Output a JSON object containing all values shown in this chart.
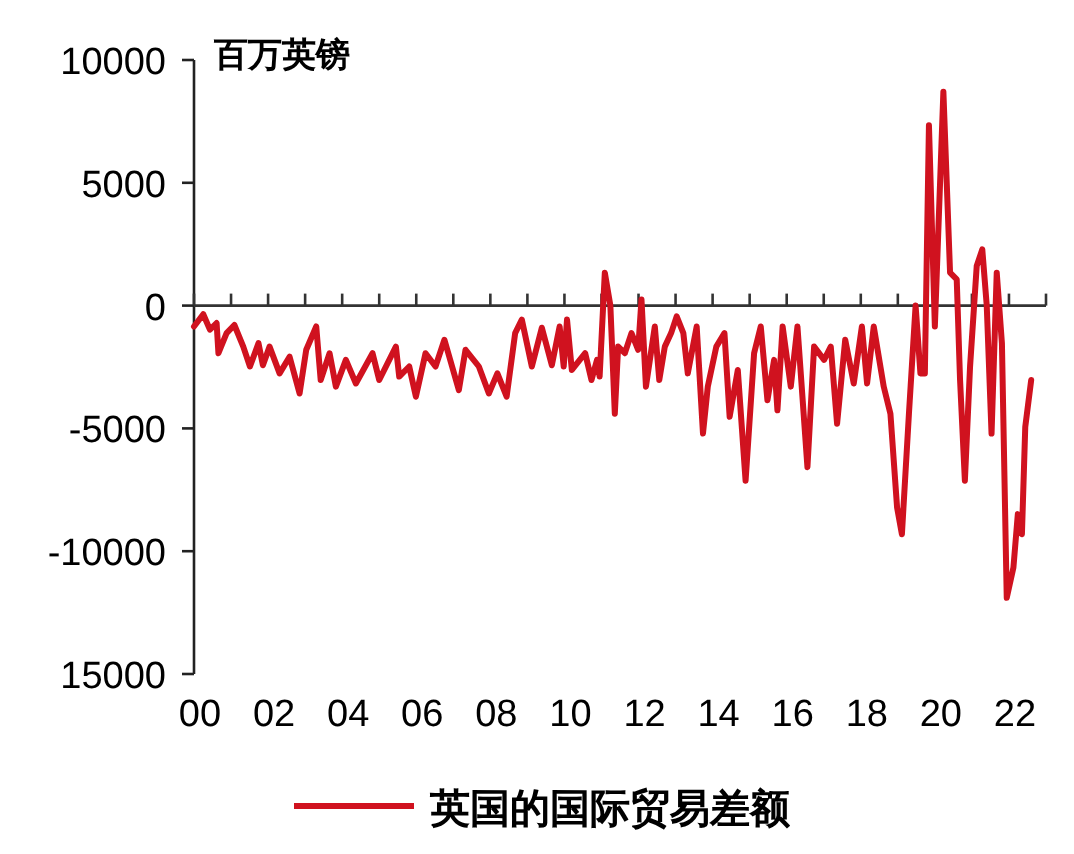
{
  "chart_data": {
    "type": "line",
    "ylabel": "百万英镑",
    "legend": "bottom",
    "x": [
      2000.0,
      2000.25,
      2000.43,
      2000.61,
      2000.66,
      2000.88,
      2001.09,
      2001.33,
      2001.51,
      2001.74,
      2001.86,
      2002.04,
      2002.31,
      2002.58,
      2002.85,
      2003.03,
      2003.3,
      2003.42,
      2003.66,
      2003.83,
      2004.1,
      2004.37,
      2004.82,
      2005.0,
      2005.45,
      2005.54,
      2005.81,
      2005.99,
      2006.25,
      2006.52,
      2006.76,
      2007.15,
      2007.33,
      2007.69,
      2007.96,
      2008.19,
      2008.44,
      2008.67,
      2008.85,
      2009.12,
      2009.39,
      2009.66,
      2009.87,
      2009.98,
      2010.07,
      2010.2,
      2010.56,
      2010.73,
      2010.88,
      2010.95,
      2011.09,
      2011.24,
      2011.36,
      2011.45,
      2011.63,
      2011.81,
      2011.99,
      2012.08,
      2012.2,
      2012.44,
      2012.56,
      2012.71,
      2012.88,
      2013.03,
      2013.21,
      2013.33,
      2013.57,
      2013.74,
      2013.87,
      2014.1,
      2014.32,
      2014.46,
      2014.68,
      2014.89,
      2015.12,
      2015.3,
      2015.48,
      2015.66,
      2015.75,
      2015.89,
      2016.11,
      2016.29,
      2016.56,
      2016.74,
      2017.01,
      2017.19,
      2017.36,
      2017.58,
      2017.81,
      2018.03,
      2018.17,
      2018.35,
      2018.62,
      2018.8,
      2018.98,
      2019.11,
      2019.3,
      2019.48,
      2019.61,
      2019.73,
      2019.84,
      2020.0,
      2020.23,
      2020.41,
      2020.59,
      2020.68,
      2020.81,
      2020.95,
      2021.13,
      2021.28,
      2021.4,
      2021.53,
      2021.67,
      2021.81,
      2021.94,
      2022.12,
      2022.24,
      2022.35,
      2022.44,
      2022.6
    ],
    "series": [
      {
        "name": "英国的国际贸易差额",
        "color": "#d0121f",
        "values": [
          -850,
          -350,
          -980,
          -710,
          -1940,
          -1120,
          -790,
          -1670,
          -2480,
          -1530,
          -2430,
          -1670,
          -2760,
          -2080,
          -3580,
          -1800,
          -850,
          -3030,
          -1940,
          -3300,
          -2210,
          -3170,
          -1940,
          -3030,
          -1670,
          -2890,
          -2480,
          -3710,
          -1940,
          -2480,
          -1390,
          -3440,
          -1800,
          -2480,
          -3580,
          -2760,
          -3710,
          -1120,
          -570,
          -2480,
          -900,
          -2430,
          -850,
          -2480,
          -570,
          -2620,
          -1940,
          -3030,
          -2210,
          -2890,
          1340,
          0,
          -4400,
          -1670,
          -1940,
          -1120,
          -1800,
          250,
          -3300,
          -850,
          -3030,
          -1670,
          -1120,
          -440,
          -1120,
          -2760,
          -850,
          -5210,
          -3300,
          -1670,
          -1120,
          -4530,
          -2620,
          -7130,
          -1940,
          -850,
          -3850,
          -2210,
          -4260,
          -850,
          -3300,
          -850,
          -6580,
          -1670,
          -2210,
          -1670,
          -4810,
          -1390,
          -3170,
          -850,
          -3170,
          -850,
          -3300,
          -4400,
          -8220,
          -9310,
          -4400,
          0,
          -2760,
          -2760,
          7340,
          -850,
          8710,
          1340,
          1070,
          -3030,
          -7130,
          -2480,
          1610,
          2290,
          0,
          -5210,
          1340,
          -1530,
          -11900,
          -10670,
          -8490,
          -9310,
          -4940,
          -3030
        ]
      }
    ],
    "xlim": [
      2000,
      2023
    ],
    "xticks": [
      {
        "value": 2000,
        "label": "00"
      },
      {
        "value": 2001,
        "label": null
      },
      {
        "value": 2002,
        "label": "02"
      },
      {
        "value": 2003,
        "label": null
      },
      {
        "value": 2004,
        "label": "04"
      },
      {
        "value": 2005,
        "label": null
      },
      {
        "value": 2006,
        "label": "06"
      },
      {
        "value": 2007,
        "label": null
      },
      {
        "value": 2008,
        "label": "08"
      },
      {
        "value": 2009,
        "label": null
      },
      {
        "value": 2010,
        "label": "10"
      },
      {
        "value": 2011,
        "label": null
      },
      {
        "value": 2012,
        "label": "12"
      },
      {
        "value": 2013,
        "label": null
      },
      {
        "value": 2014,
        "label": "14"
      },
      {
        "value": 2015,
        "label": null
      },
      {
        "value": 2016,
        "label": "16"
      },
      {
        "value": 2017,
        "label": null
      },
      {
        "value": 2018,
        "label": "18"
      },
      {
        "value": 2019,
        "label": null
      },
      {
        "value": 2020,
        "label": "20"
      },
      {
        "value": 2021,
        "label": null
      },
      {
        "value": 2022,
        "label": "22"
      },
      {
        "value": 2023,
        "label": null
      }
    ],
    "ylim": [
      -15000,
      10000
    ],
    "yticks": [
      10000,
      5000,
      0,
      -5000,
      -10000,
      {
        "value": -15000,
        "label": "15000"
      }
    ]
  }
}
